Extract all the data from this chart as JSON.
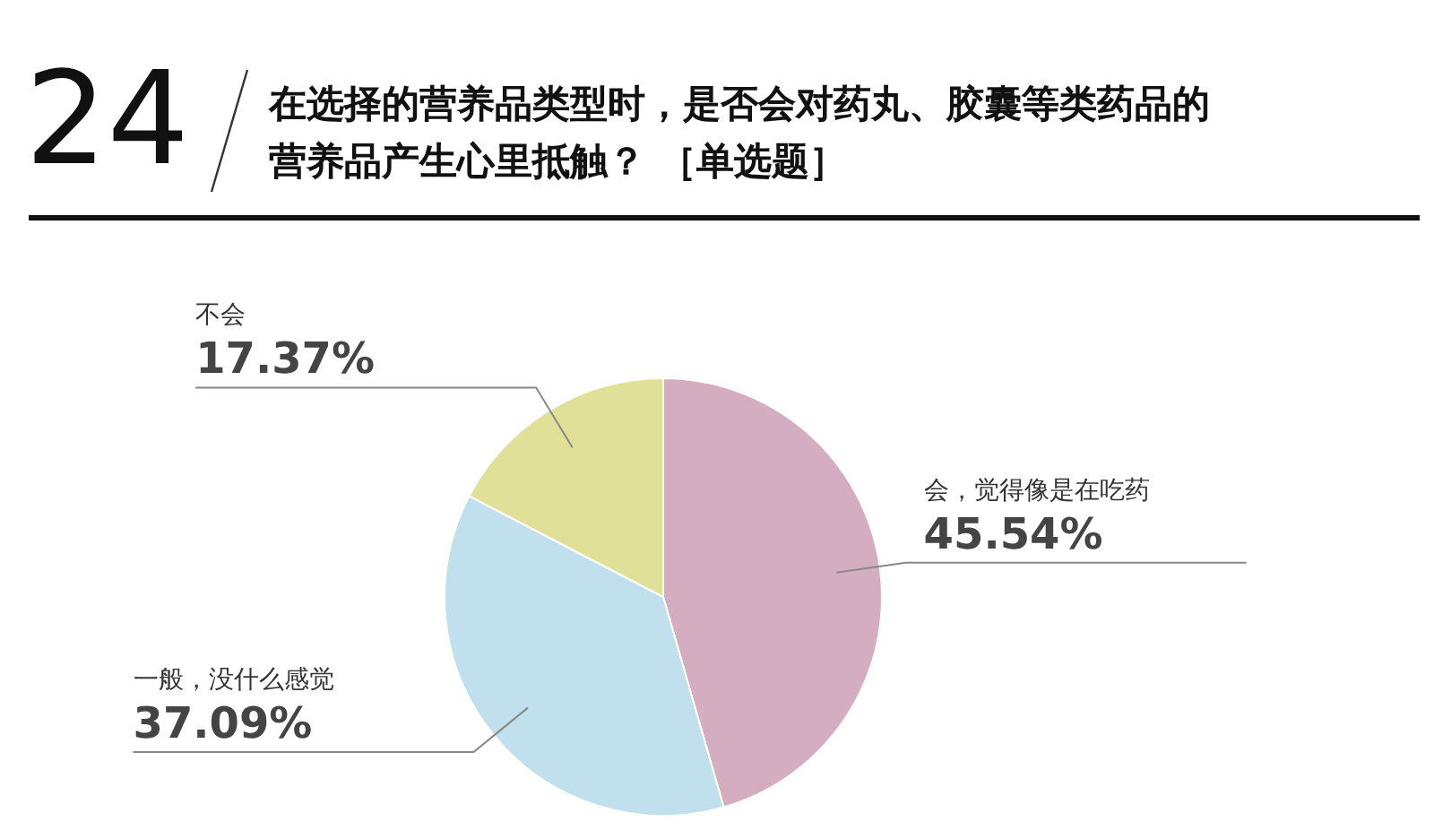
{
  "chart_data": {
    "type": "pie",
    "title": "在选择的营养品类型时，是否会对药丸、胶囊等类药品的营养品产生心里抵触？ ［单选题］",
    "annotations": [
      "24"
    ],
    "categories": [
      "会，觉得像是在吃药",
      "一般，没什么感觉",
      "不会"
    ],
    "values": [
      45.54,
      37.09,
      17.37
    ],
    "colors": [
      "#d4aec0",
      "#bfe0ec",
      "#e0e098"
    ],
    "value_labels": [
      "45.54%",
      "37.09%",
      "17.37%"
    ]
  }
}
